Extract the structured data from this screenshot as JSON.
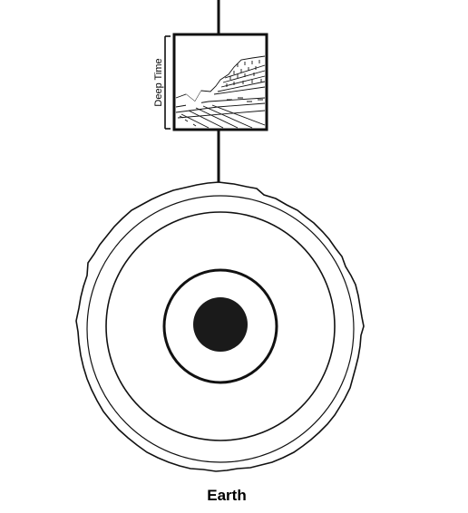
{
  "diagram": {
    "bracket_label": "Deep Time",
    "earth_label": "Earth"
  },
  "colors": {
    "ink": "#111111",
    "core": "#1a1a1a",
    "background": "#ffffff"
  },
  "icons": {
    "inset": "rock-strata-cross-section"
  }
}
